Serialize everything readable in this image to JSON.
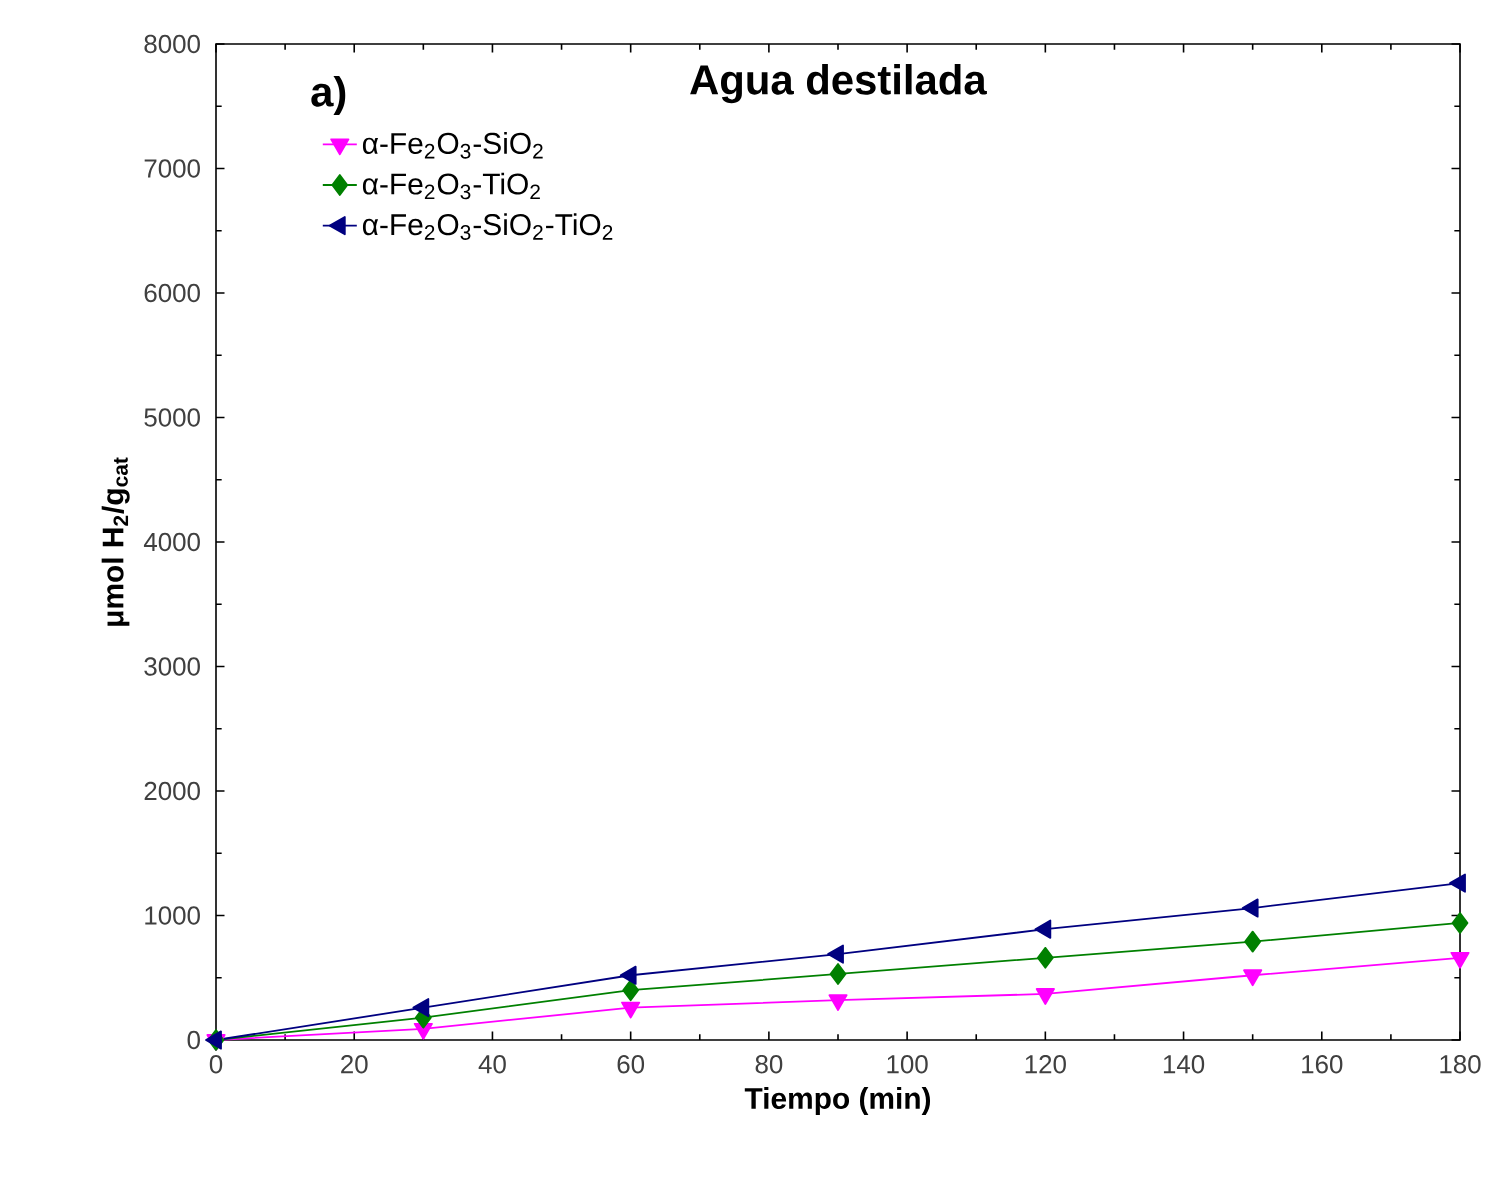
{
  "chart_data": {
    "type": "line",
    "title": "**Agua destilada**",
    "annotations": [
      "**a)**"
    ],
    "xlabel": "**Tiempo (min)**",
    "ylabel": "**μmol H$_{2}$/g$_{cat}$**",
    "x": [
      0,
      30,
      60,
      90,
      120,
      150,
      180
    ],
    "series": [
      {
        "name": "α-Fe$_{2}$O$_{3}$-SiO$_{2}$",
        "color": "#ff00ff",
        "marker": "triangle-down",
        "values": [
          0,
          90,
          260,
          320,
          370,
          520,
          660
        ]
      },
      {
        "name": "α-Fe$_{2}$O$_{3}$-TiO$_{2}$",
        "color": "#008000",
        "marker": "diamond",
        "values": [
          0,
          180,
          400,
          530,
          660,
          790,
          940
        ]
      },
      {
        "name": "α-Fe$_{2}$O$_{3}$-SiO$_{2}$-TiO$_{2}$",
        "color": "#000080",
        "marker": "triangle-left",
        "values": [
          0,
          260,
          520,
          690,
          890,
          1060,
          1260
        ]
      }
    ],
    "xlim": [
      0,
      180
    ],
    "xticks": [
      0,
      20,
      40,
      60,
      80,
      100,
      120,
      140,
      160,
      180
    ],
    "ylim": [
      0,
      8000
    ],
    "yticks": [
      0,
      1000,
      2000,
      3000,
      4000,
      5000,
      6000,
      7000,
      8000
    ],
    "grid": false,
    "legend": "top left",
    "line_style": "solid"
  }
}
